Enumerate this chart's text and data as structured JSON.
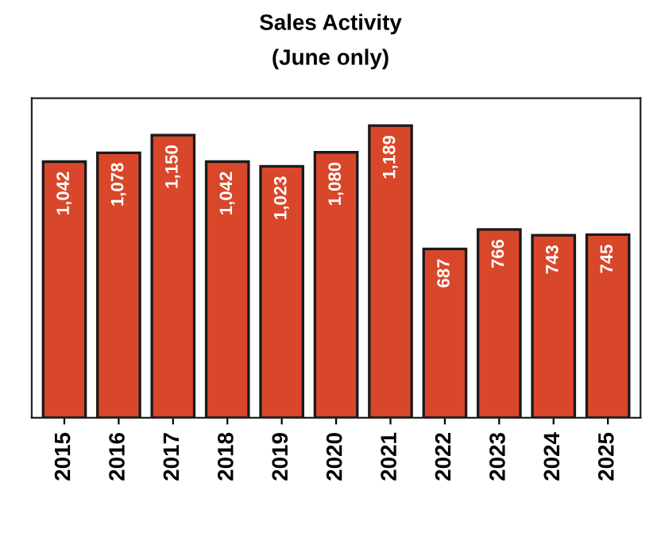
{
  "chart_data": {
    "type": "bar",
    "title": "Sales Activity",
    "subtitle": "(June only)",
    "categories": [
      "2015",
      "2016",
      "2017",
      "2018",
      "2019",
      "2020",
      "2021",
      "2022",
      "2023",
      "2024",
      "2025"
    ],
    "values": [
      1042,
      1078,
      1150,
      1042,
      1023,
      1080,
      1189,
      687,
      766,
      743,
      745
    ],
    "value_labels": [
      "1,042",
      "1,078",
      "1,150",
      "1,042",
      "1,023",
      "1,080",
      "1,189",
      "687",
      "766",
      "743",
      "745"
    ],
    "color": "#d9472b",
    "ylim": [
      0,
      1300
    ],
    "grid": false,
    "legend": false
  }
}
